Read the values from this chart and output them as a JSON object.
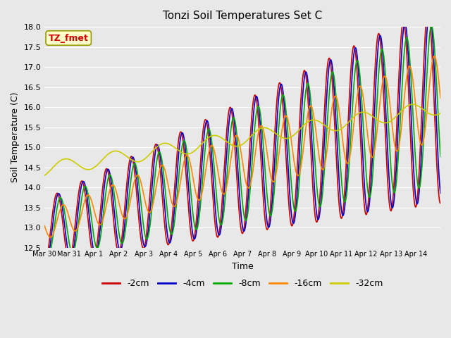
{
  "title": "Tonzi Soil Temperatures Set C",
  "xlabel": "Time",
  "ylabel": "Soil Temperature (C)",
  "ylim": [
    12.5,
    18.0
  ],
  "background_color": "#e8e8e8",
  "annotation_text": "TZ_fmet",
  "annotation_color": "#cc0000",
  "annotation_bg": "#ffffcc",
  "annotation_edge": "#999900",
  "line_colors": [
    "#cc0000",
    "#0000cc",
    "#00aa00",
    "#ff8800",
    "#cccc00"
  ],
  "series_names": [
    "-2cm",
    "-4cm",
    "-8cm",
    "-16cm",
    "-32cm"
  ],
  "xtick_labels": [
    "Mar 30",
    "Mar 31",
    "Apr 1",
    "Apr 2",
    "Apr 3",
    "Apr 4",
    "Apr 5",
    "Apr 6",
    "Apr 7",
    "Apr 8",
    "Apr 9",
    "Apr 10",
    "Apr 11",
    "Apr 12",
    "Apr 13",
    "Apr 14"
  ],
  "num_days": 16,
  "points_per_day": 48
}
